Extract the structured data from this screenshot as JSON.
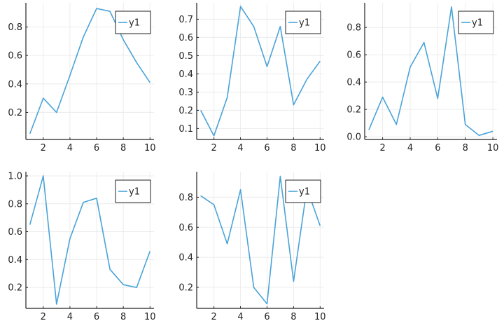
{
  "figure": {
    "layout": "2x3 grid, 5 subplots",
    "grid": true,
    "legend_placement": "top-right"
  },
  "chart_data": [
    {
      "type": "line",
      "x": [
        1,
        2,
        3,
        4,
        5,
        6,
        7,
        8,
        9,
        10
      ],
      "series": [
        {
          "name": "y1",
          "color": "#4aa3d8",
          "values": [
            0.05,
            0.3,
            0.2,
            0.46,
            0.73,
            0.93,
            0.91,
            0.71,
            0.55,
            0.41
          ]
        }
      ],
      "xlim": [
        0.7,
        10.3
      ],
      "ylim": [
        0.01,
        0.97
      ],
      "xticks": [
        2,
        4,
        6,
        8,
        10
      ],
      "yticks": [
        0.2,
        0.4,
        0.6,
        0.8
      ]
    },
    {
      "type": "line",
      "x": [
        1,
        2,
        3,
        4,
        5,
        6,
        7,
        8,
        9,
        10
      ],
      "series": [
        {
          "name": "y1",
          "color": "#4aa3d8",
          "values": [
            0.2,
            0.06,
            0.27,
            0.77,
            0.66,
            0.44,
            0.66,
            0.23,
            0.37,
            0.47
          ]
        }
      ],
      "xlim": [
        0.7,
        10.3
      ],
      "ylim": [
        0.04,
        0.79
      ],
      "xticks": [
        2,
        4,
        6,
        8,
        10
      ],
      "yticks": [
        0.1,
        0.2,
        0.3,
        0.4,
        0.5,
        0.6,
        0.7
      ]
    },
    {
      "type": "line",
      "x": [
        1,
        2,
        3,
        4,
        5,
        6,
        7,
        8,
        9,
        10
      ],
      "series": [
        {
          "name": "y1",
          "color": "#4aa3d8",
          "values": [
            0.05,
            0.29,
            0.09,
            0.51,
            0.69,
            0.28,
            0.95,
            0.09,
            0.01,
            0.04
          ]
        }
      ],
      "xlim": [
        0.7,
        10.3
      ],
      "ylim": [
        -0.02,
        0.98
      ],
      "xticks": [
        2,
        4,
        6,
        8,
        10
      ],
      "yticks": [
        "0.0",
        "0.2",
        "0.4",
        "0.6",
        "0.8"
      ]
    },
    {
      "type": "line",
      "x": [
        1,
        2,
        3,
        4,
        5,
        6,
        7,
        8,
        9,
        10
      ],
      "series": [
        {
          "name": "y1",
          "color": "#4aa3d8",
          "values": [
            0.65,
            1.0,
            0.08,
            0.55,
            0.81,
            0.84,
            0.33,
            0.22,
            0.2,
            0.46
          ]
        }
      ],
      "xlim": [
        0.7,
        10.3
      ],
      "ylim": [
        0.05,
        1.03
      ],
      "xticks": [
        2,
        4,
        6,
        8,
        10
      ],
      "yticks": [
        0.2,
        0.4,
        0.6,
        0.8,
        "1.0"
      ]
    },
    {
      "type": "line",
      "x": [
        1,
        2,
        3,
        4,
        5,
        6,
        7,
        8,
        9,
        10
      ],
      "series": [
        {
          "name": "y1",
          "color": "#4aa3d8",
          "values": [
            0.81,
            0.75,
            0.49,
            0.85,
            0.2,
            0.09,
            0.94,
            0.24,
            0.86,
            0.61
          ]
        }
      ],
      "xlim": [
        0.7,
        10.3
      ],
      "ylim": [
        0.06,
        0.97
      ],
      "xticks": [
        2,
        4,
        6,
        8,
        10
      ],
      "yticks": [
        0.2,
        0.4,
        0.6,
        0.8
      ]
    }
  ]
}
